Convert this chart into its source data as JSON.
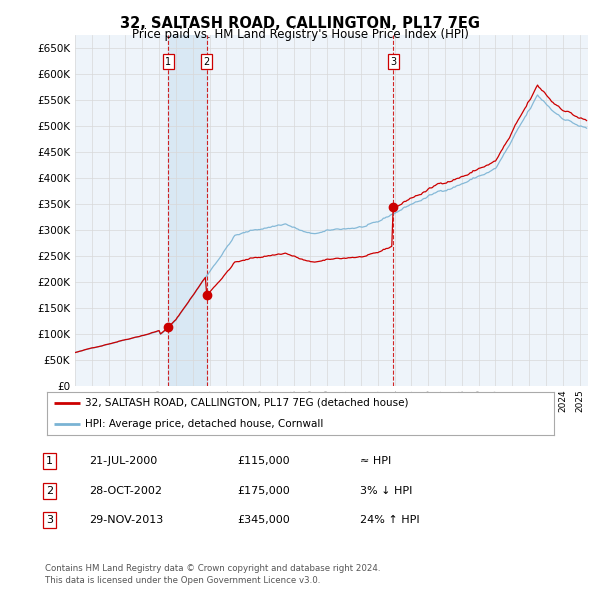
{
  "title": "32, SALTASH ROAD, CALLINGTON, PL17 7EG",
  "subtitle": "Price paid vs. HM Land Registry's House Price Index (HPI)",
  "ylim": [
    0,
    675000
  ],
  "yticks": [
    0,
    50000,
    100000,
    150000,
    200000,
    250000,
    300000,
    350000,
    400000,
    450000,
    500000,
    550000,
    600000,
    650000
  ],
  "xlim_start": 1995.0,
  "xlim_end": 2025.5,
  "sale_dates": [
    2000.55,
    2002.83,
    2013.92
  ],
  "sale_prices": [
    115000,
    175000,
    345000
  ],
  "sale_labels": [
    "1",
    "2",
    "3"
  ],
  "hpi_color": "#7ab3d4",
  "price_color": "#cc0000",
  "grid_color": "#d8d8d8",
  "background_color": "#ffffff",
  "plot_bg_color": "#eef4fa",
  "shade_color": "#cce0f0",
  "legend_entries": [
    "32, SALTASH ROAD, CALLINGTON, PL17 7EG (detached house)",
    "HPI: Average price, detached house, Cornwall"
  ],
  "table_data": [
    [
      "1",
      "21-JUL-2000",
      "£115,000",
      "≈ HPI"
    ],
    [
      "2",
      "28-OCT-2002",
      "£175,000",
      "3% ↓ HPI"
    ],
    [
      "3",
      "29-NOV-2013",
      "£345,000",
      "24% ↑ HPI"
    ]
  ],
  "footnote": "Contains HM Land Registry data © Crown copyright and database right 2024.\nThis data is licensed under the Open Government Licence v3.0."
}
